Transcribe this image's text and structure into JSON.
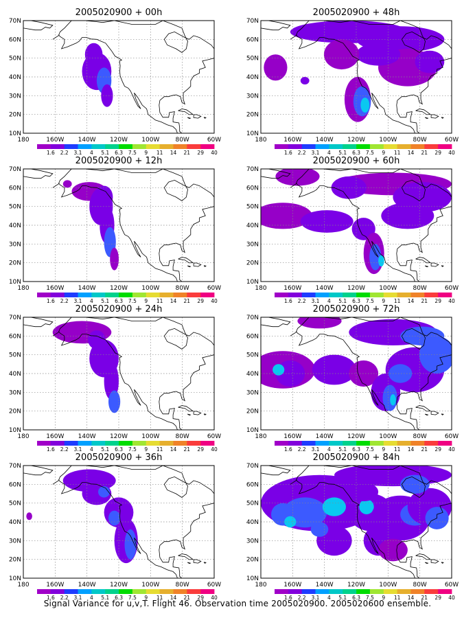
{
  "chart_data": {
    "type": "heatmap",
    "colorbar": {
      "levels": [
        "1.6",
        "2.2",
        "3.1",
        "4",
        "5.1",
        "6.3",
        "7.5",
        "9",
        "11",
        "14",
        "21",
        "29",
        "40"
      ],
      "colors": [
        "#a000c8",
        "#8200dc",
        "#1e3cff",
        "#00a0ff",
        "#00c8c8",
        "#00d28c",
        "#00dc00",
        "#a0e632",
        "#e6dc32",
        "#e6af2d",
        "#f08228",
        "#fa3c3c",
        "#f00082"
      ]
    },
    "grid": true,
    "xaxis": {
      "ticks": [
        "180",
        "160W",
        "140W",
        "120W",
        "100W",
        "80W",
        "60W"
      ],
      "range": [
        -190,
        -60
      ]
    },
    "yaxis": {
      "ticks": [
        "10N",
        "20N",
        "30N",
        "40N",
        "50N",
        "60N",
        "70N"
      ],
      "range": [
        10,
        70
      ]
    },
    "panels": [
      {
        "title": "2005020900 + 00h"
      },
      {
        "title": "2005020900 + 48h"
      },
      {
        "title": "2005020900 + 12h"
      },
      {
        "title": "2005020900 + 60h"
      },
      {
        "title": "2005020900 + 24h"
      },
      {
        "title": "2005020900 + 72h"
      },
      {
        "title": "2005020900 + 36h"
      },
      {
        "title": "2005020900 + 84h"
      }
    ]
  },
  "footer": "Signal Variance for u,v,T. Flight 46. Observation time 2005020900. 2005020600 ensemble."
}
